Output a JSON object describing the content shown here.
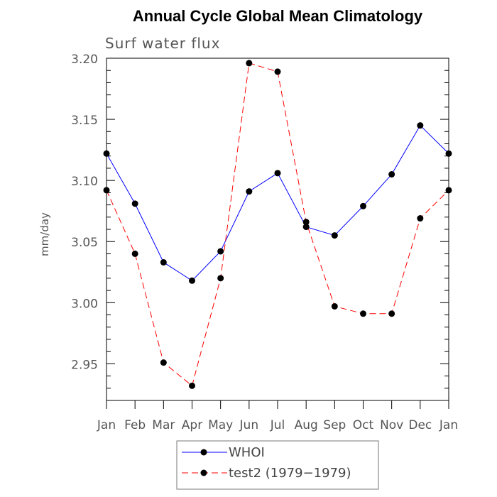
{
  "chart_data": {
    "type": "line",
    "title": "Annual Cycle Global Mean Climatology",
    "subtitle": "Surf water flux",
    "xlabel": "",
    "ylabel": "mm/day",
    "categories": [
      "Jan",
      "Feb",
      "Mar",
      "Apr",
      "May",
      "Jun",
      "Jul",
      "Aug",
      "Sep",
      "Oct",
      "Nov",
      "Dec",
      "Jan"
    ],
    "ylim": [
      2.92,
      3.2
    ],
    "yticks": [
      "3.20",
      "3.15",
      "3.10",
      "3.05",
      "3.00",
      "2.95"
    ],
    "ytick_values": [
      3.2,
      3.15,
      3.1,
      3.05,
      3.0,
      2.95
    ],
    "grid": false,
    "legend_position": "bottom-center",
    "series": [
      {
        "name": "WHOI",
        "color": "#0000ff",
        "dash": "solid",
        "values": [
          3.122,
          3.081,
          3.033,
          3.018,
          3.042,
          3.091,
          3.106,
          3.062,
          3.055,
          3.079,
          3.105,
          3.145,
          3.122
        ]
      },
      {
        "name": "test2 (1979−1979)",
        "color": "#ff0000",
        "dash": "dashed",
        "values": [
          3.092,
          3.04,
          2.951,
          2.932,
          3.02,
          3.196,
          3.189,
          3.066,
          2.997,
          2.991,
          2.991,
          3.069,
          3.092
        ]
      }
    ]
  }
}
